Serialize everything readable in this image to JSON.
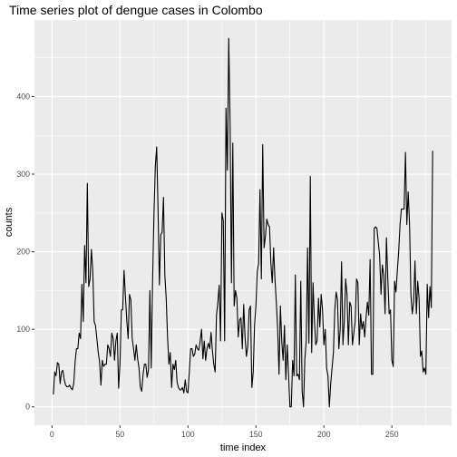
{
  "chart_data": {
    "type": "line",
    "title": "Time series plot of dengue cases in Colombo",
    "xlabel": "time index",
    "ylabel": "counts",
    "xlim": [
      -12.9,
      293.9
    ],
    "ylim": [
      -23.7,
      498.7
    ],
    "x_ticks": [
      0,
      50,
      100,
      150,
      200,
      250
    ],
    "y_ticks": [
      0,
      100,
      200,
      300,
      400
    ],
    "grid": true,
    "panel_background": "#EBEBEB",
    "grid_color": "#FFFFFF",
    "line_color": "#000000",
    "series": [
      {
        "x": [
          1,
          2,
          3,
          4,
          5,
          6,
          7,
          8,
          9,
          10,
          11,
          12,
          13,
          14,
          15,
          16,
          17,
          18,
          19,
          20,
          21,
          22,
          23,
          24,
          25,
          26,
          27,
          28,
          29,
          30,
          31,
          32,
          33,
          34,
          35,
          36,
          37,
          38,
          39,
          40,
          41,
          42,
          43,
          44,
          45,
          46,
          47,
          48,
          49,
          50,
          51,
          52,
          53,
          54,
          55,
          56,
          57,
          58,
          59,
          60,
          61,
          62,
          63,
          64,
          65,
          66,
          67,
          68,
          69,
          70,
          71,
          72,
          73,
          74,
          75,
          76,
          77,
          78,
          79,
          80,
          81,
          82,
          83,
          84,
          85,
          86,
          87,
          88,
          89,
          90,
          91,
          92,
          93,
          94,
          95,
          96,
          97,
          98,
          99,
          100,
          101,
          102,
          103,
          104,
          105,
          106,
          107,
          108,
          109,
          110,
          111,
          112,
          113,
          114,
          115,
          116,
          117,
          118,
          119,
          120,
          121,
          122,
          123,
          124,
          125,
          126,
          127,
          128,
          129,
          130,
          131,
          132,
          133,
          134,
          135,
          136,
          137,
          138,
          139,
          140,
          141,
          142,
          143,
          144,
          145,
          146,
          147,
          148,
          149,
          150,
          151,
          152,
          153,
          154,
          155,
          156,
          157,
          158,
          159,
          160,
          161,
          162,
          163,
          164,
          165,
          166,
          167,
          168,
          169,
          170,
          171,
          172,
          173,
          174,
          175,
          176,
          177,
          178,
          179,
          180,
          181,
          182,
          183,
          184,
          185,
          186,
          187,
          188,
          189,
          190,
          191,
          192,
          193,
          194,
          195,
          196,
          197,
          198,
          199,
          200,
          201,
          202,
          203,
          204,
          205,
          206,
          207,
          208,
          209,
          210,
          211,
          212,
          213,
          214,
          215,
          216,
          217,
          218,
          219,
          220,
          221,
          222,
          223,
          224,
          225,
          226,
          227,
          228,
          229,
          230,
          231,
          232,
          233,
          234,
          235,
          236,
          237,
          238,
          239,
          240,
          241,
          242,
          243,
          244,
          245,
          246,
          247,
          248,
          249,
          250,
          251,
          252,
          253,
          254,
          255,
          256,
          257,
          258,
          259,
          260,
          261,
          262,
          263,
          264,
          265,
          266,
          267,
          268,
          269,
          270,
          271,
          272,
          273,
          274,
          275,
          276,
          277,
          278,
          279,
          280
        ],
        "y": [
          16,
          45,
          40,
          57,
          55,
          30,
          45,
          47,
          35,
          28,
          26,
          26,
          28,
          24,
          22,
          30,
          58,
          75,
          75,
          95,
          88,
          158,
          110,
          208,
          160,
          288,
          155,
          165,
          203,
          175,
          110,
          105,
          88,
          70,
          58,
          28,
          60,
          52,
          55,
          55,
          80,
          75,
          65,
          95,
          88,
          60,
          85,
          95,
          24,
          55,
          125,
          125,
          176,
          143,
          112,
          88,
          145,
          138,
          88,
          75,
          60,
          80,
          62,
          50,
          25,
          20,
          42,
          55,
          55,
          38,
          48,
          150,
          50,
          162,
          248,
          310,
          335,
          255,
          157,
          222,
          225,
          270,
          170,
          140,
          90,
          55,
          70,
          25,
          55,
          48,
          60,
          32,
          25,
          22,
          22,
          25,
          18,
          35,
          20,
          18,
          45,
          75,
          75,
          65,
          68,
          80,
          75,
          73,
          85,
          100,
          62,
          85,
          60,
          75,
          82,
          75,
          96,
          72,
          55,
          45,
          118,
          135,
          157,
          85,
          250,
          240,
          85,
          385,
          305,
          475,
          365,
          160,
          340,
          130,
          150,
          140,
          90,
          112,
          115,
          75,
          132,
          90,
          65,
          78,
          125,
          130,
          25,
          45,
          105,
          130,
          175,
          185,
          280,
          165,
          338,
          205,
          220,
          242,
          235,
          232,
          185,
          160,
          205,
          165,
          135,
          100,
          42,
          130,
          85,
          60,
          105,
          35,
          80,
          42,
          0,
          0,
          60,
          40,
          170,
          40,
          42,
          35,
          162,
          20,
          0,
          62,
          85,
          205,
          82,
          297,
          70,
          160,
          112,
          80,
          85,
          140,
          103,
          145,
          125,
          80,
          100,
          50,
          40,
          0,
          30,
          50,
          70,
          125,
          148,
          138,
          75,
          100,
          187,
          80,
          110,
          165,
          145,
          80,
          135,
          130,
          80,
          95,
          110,
          165,
          160,
          80,
          120,
          100,
          110,
          90,
          115,
          135,
          118,
          190,
          42,
          42,
          230,
          232,
          230,
          212,
          195,
          145,
          183,
          170,
          120,
          218,
          165,
          120,
          125,
          60,
          52,
          162,
          148,
          175,
          200,
          235,
          255,
          255,
          255,
          328,
          235,
          277,
          235,
          145,
          120,
          135,
          188,
          120,
          162,
          140,
          65,
          72,
          45,
          50,
          42,
          158,
          115,
          155,
          128,
          330
        ]
      }
    ]
  }
}
